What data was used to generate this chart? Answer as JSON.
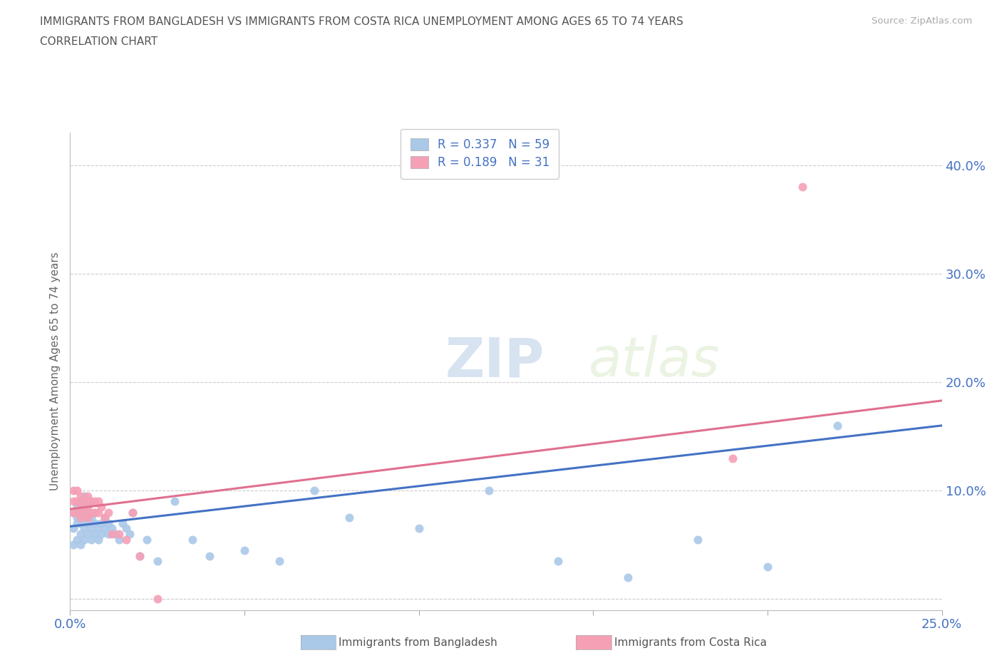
{
  "title_line1": "IMMIGRANTS FROM BANGLADESH VS IMMIGRANTS FROM COSTA RICA UNEMPLOYMENT AMONG AGES 65 TO 74 YEARS",
  "title_line2": "CORRELATION CHART",
  "source": "Source: ZipAtlas.com",
  "ylabel": "Unemployment Among Ages 65 to 74 years",
  "watermark_zip": "ZIP",
  "watermark_atlas": "atlas",
  "xlim": [
    0.0,
    0.25
  ],
  "ylim": [
    -0.01,
    0.43
  ],
  "xticks": [
    0.0,
    0.05,
    0.1,
    0.15,
    0.2,
    0.25
  ],
  "yticks": [
    0.0,
    0.1,
    0.2,
    0.3,
    0.4
  ],
  "xticklabels": [
    "0.0%",
    "",
    "",
    "",
    "",
    "25.0%"
  ],
  "yticklabels": [
    "",
    "10.0%",
    "20.0%",
    "30.0%",
    "40.0%"
  ],
  "bangladesh_color": "#aac8e8",
  "costa_rica_color": "#f5a0b5",
  "bangladesh_line_color": "#4472c4",
  "costa_rica_line_color": "#e07090",
  "R_bangladesh": 0.337,
  "N_bangladesh": 59,
  "R_costa_rica": 0.189,
  "N_costa_rica": 31,
  "title_color": "#555555",
  "tick_color": "#4472c4",
  "grid_color": "#cccccc",
  "background_color": "#ffffff",
  "bangladesh_x": [
    0.001,
    0.001,
    0.001,
    0.002,
    0.002,
    0.002,
    0.002,
    0.003,
    0.003,
    0.003,
    0.003,
    0.003,
    0.004,
    0.004,
    0.004,
    0.004,
    0.004,
    0.005,
    0.005,
    0.005,
    0.005,
    0.006,
    0.006,
    0.006,
    0.007,
    0.007,
    0.007,
    0.008,
    0.008,
    0.009,
    0.009,
    0.01,
    0.01,
    0.011,
    0.011,
    0.012,
    0.013,
    0.014,
    0.015,
    0.016,
    0.017,
    0.018,
    0.02,
    0.022,
    0.025,
    0.03,
    0.035,
    0.04,
    0.05,
    0.06,
    0.07,
    0.08,
    0.1,
    0.12,
    0.14,
    0.16,
    0.18,
    0.2,
    0.22
  ],
  "bangladesh_y": [
    0.05,
    0.065,
    0.08,
    0.055,
    0.07,
    0.075,
    0.085,
    0.05,
    0.06,
    0.07,
    0.08,
    0.09,
    0.055,
    0.065,
    0.075,
    0.085,
    0.095,
    0.06,
    0.07,
    0.08,
    0.09,
    0.055,
    0.065,
    0.075,
    0.06,
    0.07,
    0.08,
    0.055,
    0.065,
    0.06,
    0.07,
    0.065,
    0.075,
    0.06,
    0.07,
    0.065,
    0.06,
    0.055,
    0.07,
    0.065,
    0.06,
    0.08,
    0.04,
    0.055,
    0.035,
    0.09,
    0.055,
    0.04,
    0.045,
    0.035,
    0.1,
    0.075,
    0.065,
    0.1,
    0.035,
    0.02,
    0.055,
    0.03,
    0.16
  ],
  "costa_rica_x": [
    0.001,
    0.001,
    0.001,
    0.002,
    0.002,
    0.002,
    0.003,
    0.003,
    0.003,
    0.004,
    0.004,
    0.005,
    0.005,
    0.005,
    0.006,
    0.006,
    0.007,
    0.007,
    0.008,
    0.008,
    0.009,
    0.01,
    0.011,
    0.012,
    0.014,
    0.016,
    0.018,
    0.02,
    0.025,
    0.19,
    0.21
  ],
  "costa_rica_y": [
    0.08,
    0.09,
    0.1,
    0.08,
    0.09,
    0.1,
    0.075,
    0.085,
    0.095,
    0.08,
    0.09,
    0.075,
    0.085,
    0.095,
    0.08,
    0.09,
    0.08,
    0.09,
    0.08,
    0.09,
    0.085,
    0.075,
    0.08,
    0.06,
    0.06,
    0.055,
    0.08,
    0.04,
    0.0,
    0.13,
    0.38
  ],
  "trend_bangladesh_x0": 0.0,
  "trend_bangladesh_y0": 0.067,
  "trend_bangladesh_x1": 0.25,
  "trend_bangladesh_y1": 0.16,
  "trend_costa_rica_x0": 0.0,
  "trend_costa_rica_y0": 0.083,
  "trend_costa_rica_x1": 0.25,
  "trend_costa_rica_y1": 0.183
}
